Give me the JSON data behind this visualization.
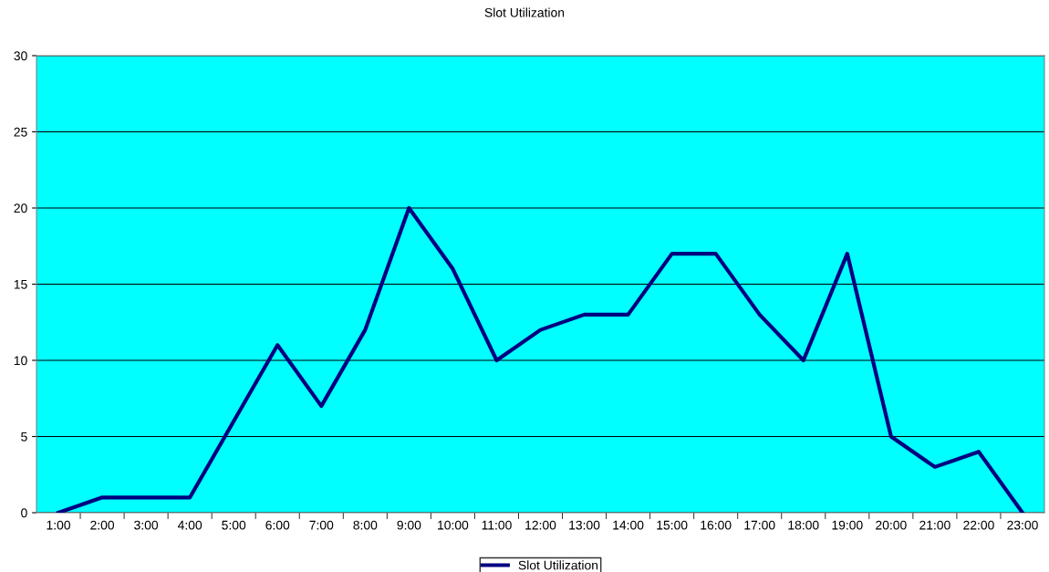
{
  "chart_data": {
    "type": "line",
    "title": "Slot Utilization",
    "categories": [
      "1:00",
      "2:00",
      "3:00",
      "4:00",
      "5:00",
      "6:00",
      "7:00",
      "8:00",
      "9:00",
      "10:00",
      "11:00",
      "12:00",
      "13:00",
      "14:00",
      "15:00",
      "16:00",
      "17:00",
      "18:00",
      "19:00",
      "20:00",
      "21:00",
      "22:00",
      "23:00"
    ],
    "series": [
      {
        "name": "Slot Utilization",
        "color": "#000080",
        "values": [
          0,
          1,
          1,
          1,
          6,
          11,
          7,
          12,
          20,
          16,
          10,
          12,
          13,
          13,
          17,
          17,
          13,
          10,
          17,
          5,
          3,
          4,
          0
        ]
      }
    ],
    "ylim": [
      0,
      30
    ],
    "yticks": [
      0,
      5,
      10,
      15,
      20,
      25,
      30
    ],
    "grid": "y",
    "legend": "bottom",
    "marker": "none",
    "line_style": "solid"
  }
}
